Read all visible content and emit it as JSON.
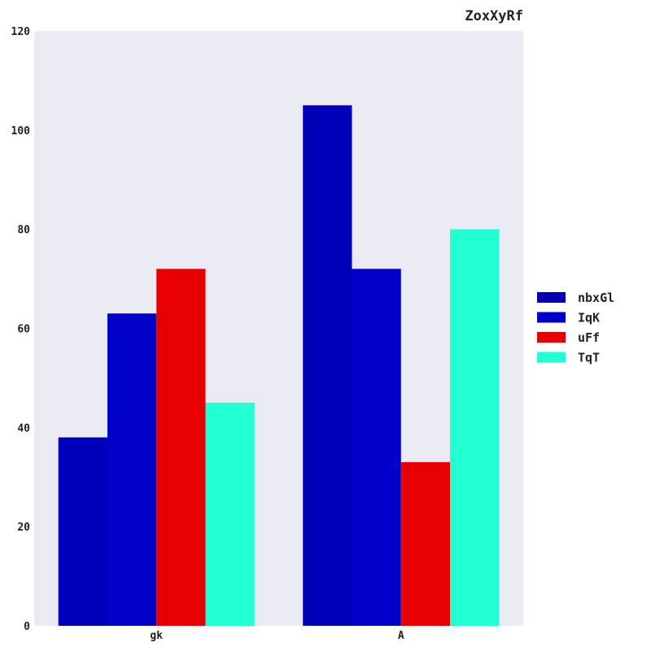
{
  "chart_data": {
    "type": "bar",
    "title": "ZoxXyRf",
    "xlabel": "",
    "ylabel": "",
    "categories": [
      "gk",
      "A"
    ],
    "series": [
      {
        "name": "nbxGl",
        "values": [
          38,
          105
        ],
        "color": "#0000b8"
      },
      {
        "name": "IqK",
        "values": [
          63,
          72
        ],
        "color": "#0000c8"
      },
      {
        "name": "uFf",
        "values": [
          72,
          33
        ],
        "color": "#e80000"
      },
      {
        "name": "TqT",
        "values": [
          45,
          80
        ],
        "color": "#22ffd2"
      }
    ],
    "ylim": [
      0,
      120
    ],
    "yticks": [
      "0",
      "20",
      "40",
      "60",
      "80",
      "100",
      "120"
    ],
    "grid": false,
    "legend": "right",
    "plot_background": "#eaeaf2"
  }
}
